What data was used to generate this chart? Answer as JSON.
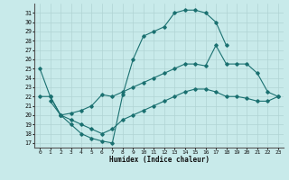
{
  "xlabel": "Humidex (Indice chaleur)",
  "bg_color": "#c8eaea",
  "grid_color": "#b0d4d4",
  "line_color": "#1a7070",
  "xlim": [
    -0.5,
    23.5
  ],
  "ylim": [
    16.5,
    32.0
  ],
  "xticks": [
    0,
    1,
    2,
    3,
    4,
    5,
    6,
    7,
    8,
    9,
    10,
    11,
    12,
    13,
    14,
    15,
    16,
    17,
    18,
    19,
    20,
    21,
    22,
    23
  ],
  "yticks": [
    17,
    18,
    19,
    20,
    21,
    22,
    23,
    24,
    25,
    26,
    27,
    28,
    29,
    30,
    31
  ],
  "curve1_x": [
    0,
    1,
    2,
    3,
    4,
    5,
    6,
    7,
    8,
    9,
    10,
    11,
    12,
    13,
    14,
    15,
    16,
    17,
    18
  ],
  "curve1_y": [
    25.0,
    22.0,
    20.0,
    19.0,
    18.0,
    17.5,
    17.2,
    17.0,
    22.2,
    26.0,
    28.5,
    29.0,
    29.5,
    31.0,
    31.3,
    31.3,
    31.0,
    30.0,
    27.5
  ],
  "curve2_x": [
    0,
    1,
    2,
    3,
    4,
    5,
    6,
    7,
    8,
    9,
    10,
    11,
    12,
    13,
    14,
    15,
    16,
    17,
    18,
    19,
    20,
    21,
    22,
    23
  ],
  "curve2_y": [
    22.0,
    22.0,
    20.0,
    20.2,
    20.5,
    21.0,
    22.2,
    22.0,
    22.5,
    23.0,
    23.5,
    24.0,
    24.5,
    25.0,
    25.5,
    25.5,
    25.3,
    27.5,
    25.5,
    25.5,
    25.5,
    24.5,
    22.5,
    22.0
  ],
  "curve3_x": [
    1,
    2,
    3,
    4,
    5,
    6,
    7,
    8,
    9,
    10,
    11,
    12,
    13,
    14,
    15,
    16,
    17,
    18,
    19,
    20,
    21,
    22,
    23
  ],
  "curve3_y": [
    21.5,
    20.0,
    19.5,
    19.0,
    18.5,
    18.0,
    18.5,
    19.5,
    20.0,
    20.5,
    21.0,
    21.5,
    22.0,
    22.5,
    22.8,
    22.8,
    22.5,
    22.0,
    22.0,
    21.8,
    21.5,
    21.5,
    22.0
  ]
}
